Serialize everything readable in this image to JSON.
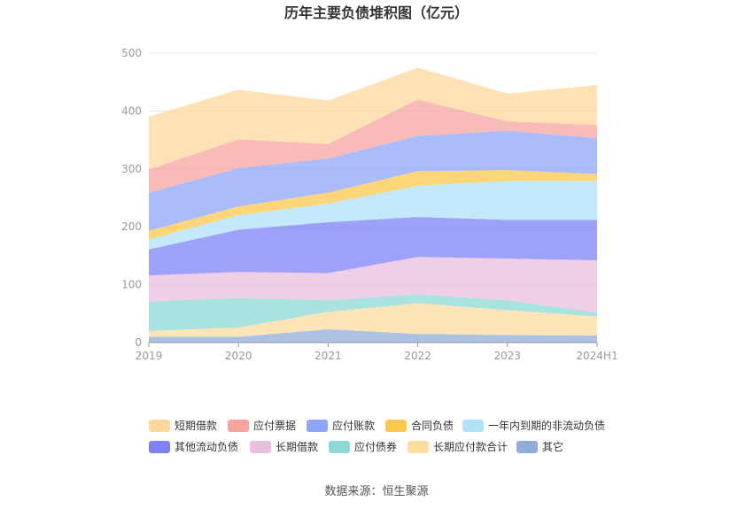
{
  "chart_data": {
    "type": "area",
    "stacked": true,
    "title": "历年主要负债堆积图（亿元）",
    "categories": [
      "2019",
      "2020",
      "2021",
      "2022",
      "2023",
      "2024H1"
    ],
    "ylim": [
      0,
      500
    ],
    "yticks": [
      0,
      100,
      200,
      300,
      400,
      500
    ],
    "grid": true,
    "legend_position": "bottom",
    "series": [
      {
        "name": "其它",
        "color": "#8fadd8",
        "values": [
          10,
          10,
          23,
          15,
          13,
          12
        ]
      },
      {
        "name": "长期应付款合计",
        "color": "#fcdca0",
        "values": [
          10,
          16,
          30,
          53,
          43,
          33
        ]
      },
      {
        "name": "应付债券",
        "color": "#8cd9d6",
        "values": [
          51,
          51,
          20,
          15,
          17,
          7
        ]
      },
      {
        "name": "长期借款",
        "color": "#e9bedf",
        "values": [
          45,
          45,
          47,
          65,
          72,
          90
        ]
      },
      {
        "name": "其他流动负债",
        "color": "#7f82f5",
        "values": [
          45,
          73,
          88,
          69,
          67,
          70
        ]
      },
      {
        "name": "一年内到期的非流动负债",
        "color": "#aee3fb",
        "values": [
          17,
          25,
          32,
          54,
          67,
          67
        ]
      },
      {
        "name": "合同负债",
        "color": "#fcc84d",
        "values": [
          15,
          15,
          19,
          25,
          19,
          12
        ]
      },
      {
        "name": "应付账款",
        "color": "#8ea6f8",
        "values": [
          66,
          66,
          59,
          61,
          68,
          62
        ]
      },
      {
        "name": "应付票据",
        "color": "#f7a49f",
        "values": [
          40,
          50,
          25,
          63,
          16,
          23
        ]
      },
      {
        "name": "短期借款",
        "color": "#fdd89c",
        "values": [
          91,
          86,
          75,
          55,
          48,
          69
        ]
      }
    ],
    "legend_order": [
      "短期借款",
      "应付票据",
      "应付账款",
      "合同负债",
      "一年内到期的非流动负债",
      "其他流动负债",
      "长期借款",
      "应付债券",
      "长期应付款合计",
      "其它"
    ]
  },
  "source_text": "数据来源：恒生聚源"
}
